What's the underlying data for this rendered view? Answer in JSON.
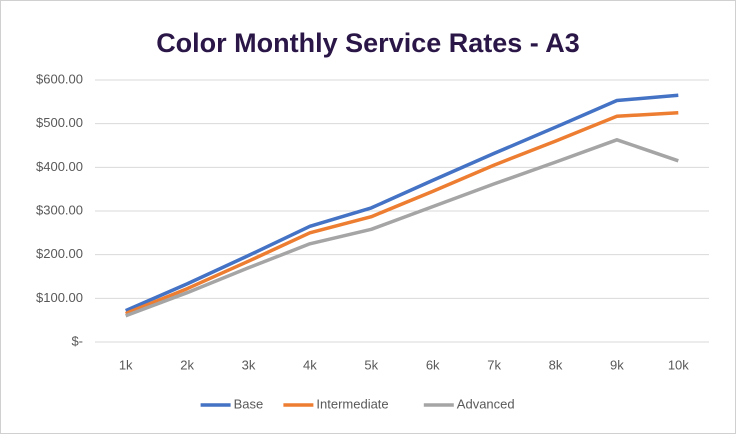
{
  "chart_data": {
    "type": "line",
    "title": "Color Monthly Service Rates - A3",
    "categories": [
      "1k",
      "2k",
      "3k",
      "4k",
      "5k",
      "6k",
      "7k",
      "8k",
      "9k",
      "10k"
    ],
    "series": [
      {
        "name": "Base",
        "color": "#4472c4",
        "values": [
          72,
          133,
          198,
          265,
          307,
          370,
          432,
          492,
          553,
          565
        ]
      },
      {
        "name": "Intermediate",
        "color": "#ed7d31",
        "values": [
          65,
          122,
          185,
          250,
          287,
          345,
          405,
          460,
          517,
          525
        ]
      },
      {
        "name": "Advanced",
        "color": "#a5a5a5",
        "values": [
          60,
          113,
          170,
          225,
          258,
          310,
          362,
          412,
          463,
          415
        ]
      }
    ],
    "ylim": [
      0,
      600
    ],
    "yticks": [
      {
        "value": 0,
        "label": "$-"
      },
      {
        "value": 100,
        "label": "$100.00"
      },
      {
        "value": 200,
        "label": "$200.00"
      },
      {
        "value": 300,
        "label": "$300.00"
      },
      {
        "value": 400,
        "label": "$400.00"
      },
      {
        "value": 500,
        "label": "$500.00"
      },
      {
        "value": 600,
        "label": "$600.00"
      }
    ],
    "grid": true,
    "legend": "bottom"
  }
}
